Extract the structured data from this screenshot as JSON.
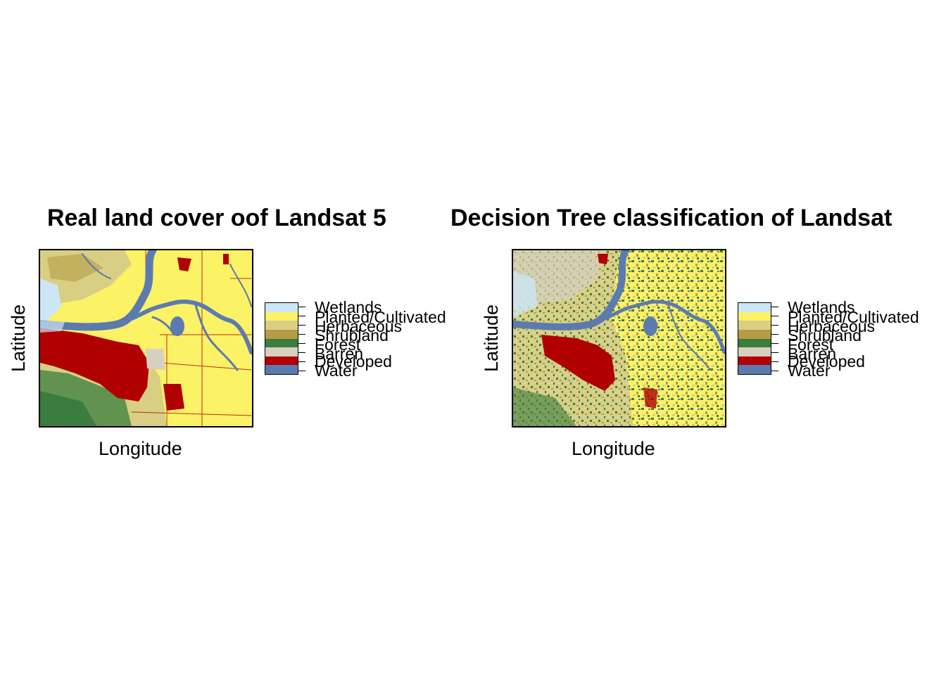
{
  "panels": [
    {
      "title": "Real land cover oof Landsat 5",
      "xlabel": "Longitude",
      "ylabel": "Latitude",
      "legend": [
        "Wetlands",
        "Planted/Cultivated",
        "Herbaceous",
        "Shrubland",
        "Forest",
        "Barren",
        "Developed",
        "Water"
      ]
    },
    {
      "title": "Decision Tree classification of Landsat",
      "xlabel": "Longitude",
      "ylabel": "Latitude",
      "legend": [
        "Wetlands",
        "Planted/Cultivated",
        "Herbaceous",
        "Shrubland",
        "Forest",
        "Barren",
        "Developed",
        "Water"
      ]
    }
  ],
  "legend_colors": {
    "Wetlands": "#cde6f5",
    "Planted/Cultivated": "#fbf266",
    "Herbaceous": "#d8cf84",
    "Shrubland": "#b69c44",
    "Forest": "#3a7d3e",
    "Barren": "#d6d0c0",
    "Developed": "#b00000",
    "Water": "#5b7bb0"
  }
}
